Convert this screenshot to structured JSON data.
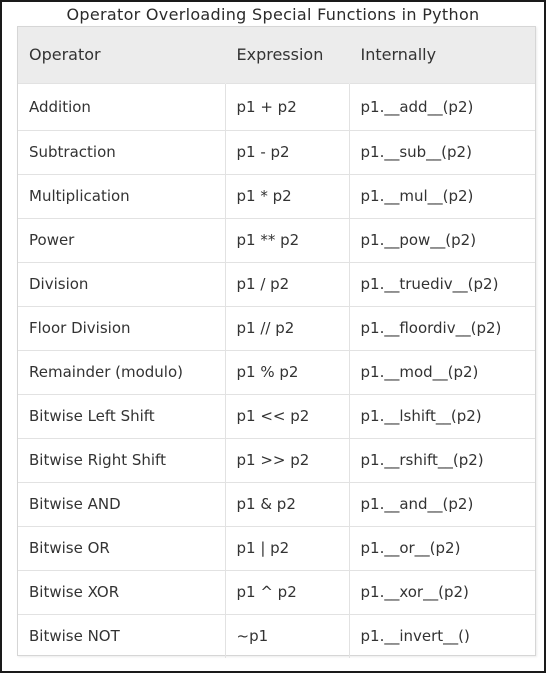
{
  "title": "Operator Overloading Special Functions in Python",
  "headers": {
    "operator": "Operator",
    "expression": "Expression",
    "internally": "Internally"
  },
  "rows": [
    {
      "operator": "Addition",
      "expression": "p1 + p2",
      "internally": "p1.__add__(p2)"
    },
    {
      "operator": "Subtraction",
      "expression": "p1 - p2",
      "internally": "p1.__sub__(p2)"
    },
    {
      "operator": "Multiplication",
      "expression": "p1 * p2",
      "internally": "p1.__mul__(p2)"
    },
    {
      "operator": "Power",
      "expression": "p1 ** p2",
      "internally": "p1.__pow__(p2)"
    },
    {
      "operator": "Division",
      "expression": "p1 / p2",
      "internally": "p1.__truediv__(p2)"
    },
    {
      "operator": "Floor Division",
      "expression": "p1 // p2",
      "internally": "p1.__floordiv__(p2)"
    },
    {
      "operator": "Remainder (modulo)",
      "expression": "p1 % p2",
      "internally": "p1.__mod__(p2)"
    },
    {
      "operator": "Bitwise Left Shift",
      "expression": "p1 << p2",
      "internally": "p1.__lshift__(p2)"
    },
    {
      "operator": "Bitwise Right Shift",
      "expression": "p1 >> p2",
      "internally": "p1.__rshift__(p2)"
    },
    {
      "operator": "Bitwise AND",
      "expression": "p1 & p2",
      "internally": "p1.__and__(p2)"
    },
    {
      "operator": "Bitwise OR",
      "expression": "p1 | p2",
      "internally": "p1.__or__(p2)"
    },
    {
      "operator": "Bitwise XOR",
      "expression": "p1 ^ p2",
      "internally": "p1.__xor__(p2)"
    },
    {
      "operator": "Bitwise NOT",
      "expression": "~p1",
      "internally": "p1.__invert__()"
    }
  ]
}
